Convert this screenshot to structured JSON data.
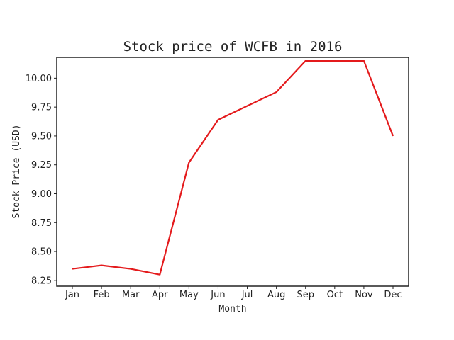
{
  "chart_data": {
    "type": "line",
    "title": "Stock price of WCFB in 2016",
    "xlabel": "Month",
    "ylabel": "Stock Price (USD)",
    "categories": [
      "Jan",
      "Feb",
      "Mar",
      "Apr",
      "May",
      "Jun",
      "Jul",
      "Aug",
      "Sep",
      "Oct",
      "Nov",
      "Dec"
    ],
    "series": [
      {
        "values": [
          8.35,
          8.38,
          8.35,
          8.3,
          9.27,
          9.64,
          9.76,
          9.88,
          10.15,
          10.15,
          10.15,
          9.5
        ],
        "color": "#e41a1c"
      }
    ],
    "yticks": [
      "8.25",
      "8.50",
      "8.75",
      "9.00",
      "9.25",
      "9.50",
      "9.75",
      "10.00"
    ],
    "ylim": [
      8.2,
      10.18
    ],
    "grid": false,
    "legend": "none"
  }
}
